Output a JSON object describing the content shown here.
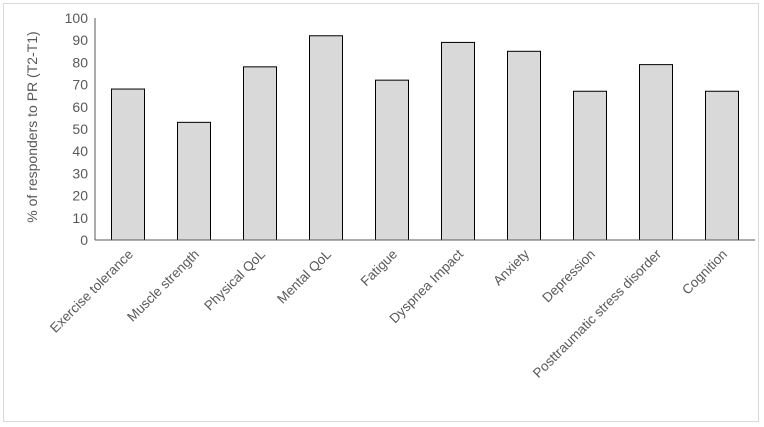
{
  "chart_data": {
    "type": "bar",
    "title": "",
    "xlabel": "",
    "ylabel": "% of responders to PR (T2-T1)",
    "ylim": [
      0,
      100
    ],
    "yticks": [
      0,
      10,
      20,
      30,
      40,
      50,
      60,
      70,
      80,
      90,
      100
    ],
    "grid": false,
    "legend": "none",
    "categories": [
      "Exercise tolerance",
      "Muscle strength",
      "Physical QoL",
      "Mental QoL",
      "Fatigue",
      "Dyspnea Impact",
      "Anxiety",
      "Depression",
      "Posttraumatic stress disorder",
      "Cognition"
    ],
    "values": [
      68,
      53,
      78,
      92,
      72,
      89,
      85,
      67,
      79,
      67
    ],
    "colors": {
      "bar_fill": "#d9d9d9",
      "bar_stroke": "#000000",
      "axis": "#595959",
      "text": "#595959"
    }
  }
}
